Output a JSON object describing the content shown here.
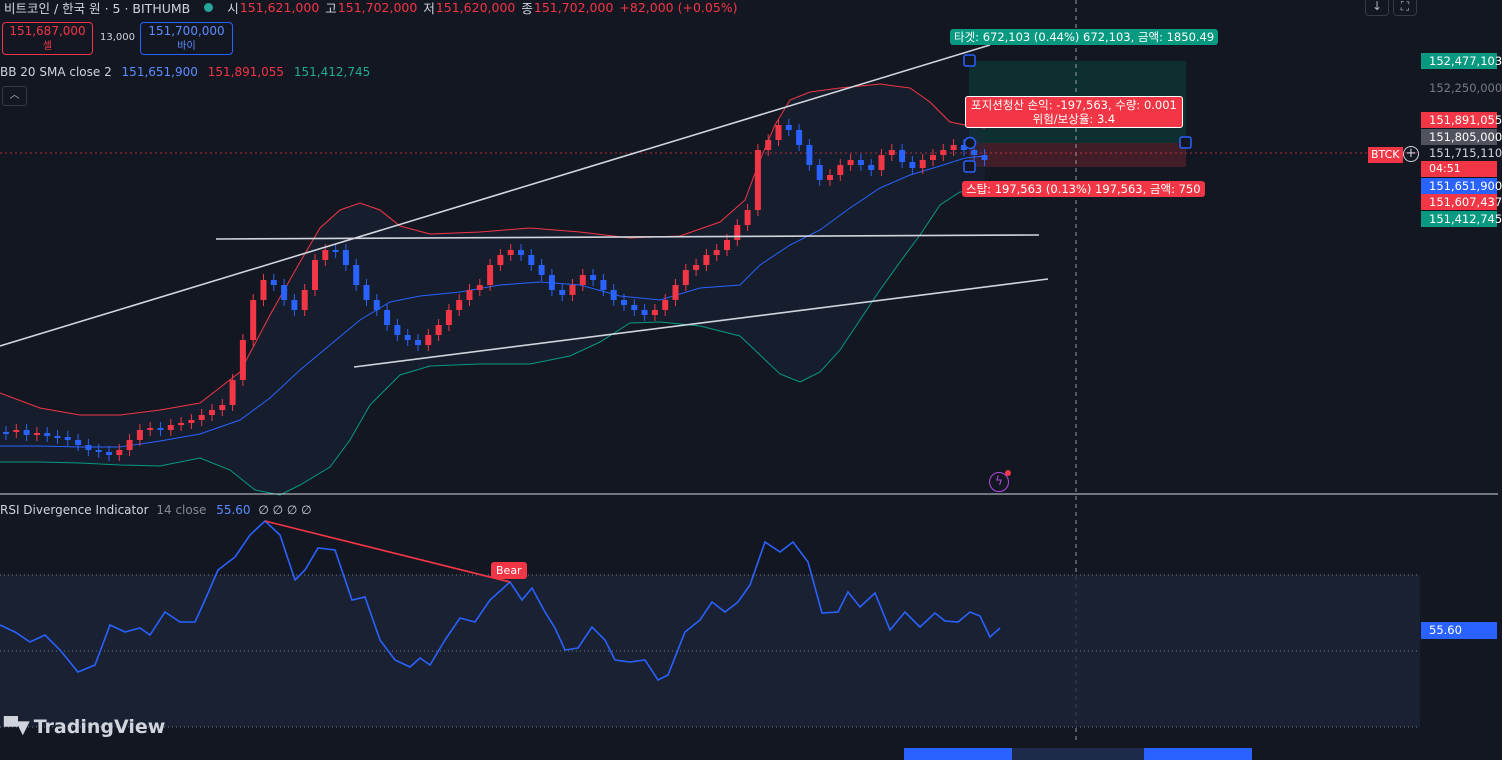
{
  "header": {
    "symbol": "비트코인 / 한국 원 · 5 · BITHUMB",
    "open_label": "시",
    "open": "151,621,000",
    "high_label": "고",
    "high": "151,702,000",
    "low_label": "저",
    "low": "151,620,000",
    "close_label": "종",
    "close": "151,702,000",
    "change": "+82,000 (+0.05%)"
  },
  "orderbook": {
    "sell_price": "151,687,000",
    "sell_label": "셀",
    "spread": "13,000",
    "buy_price": "151,700,000",
    "buy_label": "바이"
  },
  "bb": {
    "name": "BB 20 SMA close 2",
    "basis": "151,651,900",
    "upper": "151,891,055",
    "lower": "151,412,745"
  },
  "rsi": {
    "name": "RSI Divergence Indicator",
    "params": "14 close",
    "value": "55.60",
    "extras": "∅ ∅ ∅ ∅",
    "bear_label": "Bear"
  },
  "position": {
    "target_label": "타겟: 672,103 (0.44%) 672,103, 금액: 1850.49",
    "pnl_label": "포지션청산 손익: -197,563, 수량: 0.001",
    "rr_label": "위험/보상율: 3.4",
    "stop_label": "스탑: 197,563 (0.13%) 197,563, 금액: 750"
  },
  "symbol_tag": "BTCK",
  "price_axis": {
    "target": "152,477,103",
    "grid": "152,250,000",
    "bb_upper": "151,891,055",
    "entry": "151,805,000",
    "last": "151,715,110",
    "countdown": "04:51",
    "bb_basis": "151,651,900",
    "stop": "151,607,437",
    "bb_lower": "151,412,745",
    "rsi_value": "55.60"
  },
  "colors": {
    "up": "#f23645",
    "down": "#2962ff",
    "bb_upper": "#f23645",
    "bb_basis": "#2962ff",
    "bb_lower": "#089981",
    "rsi": "#2962ff",
    "target": "#089981",
    "stop": "#f23645"
  },
  "icons": {
    "download": "download-icon",
    "fullscreen": "fullscreen-icon",
    "collapse": "chevron-up-icon",
    "alert": "lightning-icon",
    "add": "plus-icon",
    "logo": "tradingview-logo"
  },
  "watermark": "TradingView"
}
